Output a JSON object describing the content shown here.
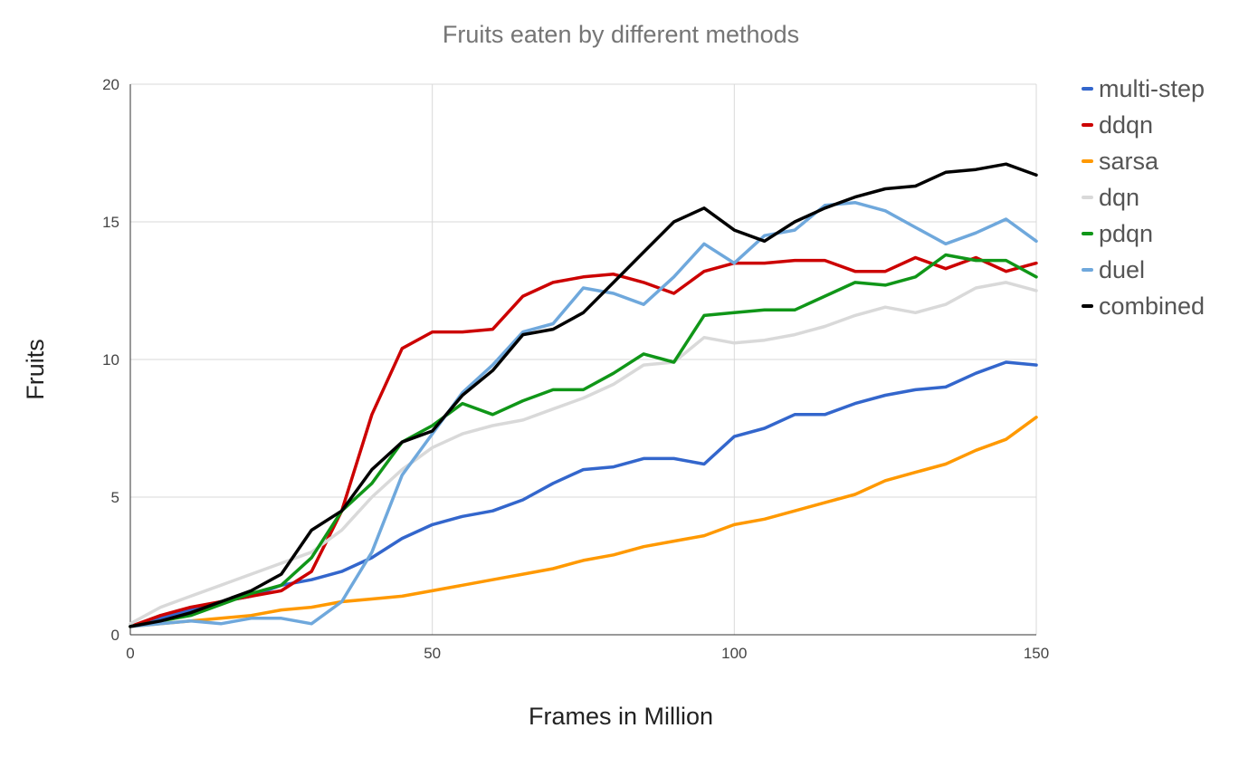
{
  "chart_data": {
    "type": "line",
    "title": "Fruits eaten by different methods",
    "xlabel": "Frames in Million",
    "ylabel": "Fruits",
    "xlim": [
      0,
      150
    ],
    "ylim": [
      0,
      20
    ],
    "xticks": [
      "0",
      "50",
      "100",
      "150"
    ],
    "yticks": [
      "0",
      "5",
      "10",
      "15",
      "20"
    ],
    "grid": true,
    "legend_position": "right",
    "x": [
      0,
      5,
      10,
      15,
      20,
      25,
      30,
      35,
      40,
      45,
      50,
      55,
      60,
      65,
      70,
      75,
      80,
      85,
      90,
      95,
      100,
      105,
      110,
      115,
      120,
      125,
      130,
      135,
      140,
      145,
      150
    ],
    "series": [
      {
        "name": "multi-step",
        "color": "#3366cc",
        "values": [
          0.3,
          0.6,
          0.9,
          1.2,
          1.4,
          1.8,
          2.0,
          2.3,
          2.8,
          3.5,
          4.0,
          4.3,
          4.5,
          4.9,
          5.5,
          6.0,
          6.1,
          6.4,
          6.4,
          6.2,
          7.2,
          7.5,
          8.0,
          8.0,
          8.4,
          8.7,
          8.9,
          9.0,
          9.5,
          9.9,
          9.8
        ]
      },
      {
        "name": "ddqn",
        "color": "#cc0000",
        "values": [
          0.3,
          0.7,
          1.0,
          1.2,
          1.4,
          1.6,
          2.3,
          4.5,
          8.0,
          10.4,
          11.0,
          11.0,
          11.1,
          12.3,
          12.8,
          13.0,
          13.1,
          12.8,
          12.4,
          13.2,
          13.5,
          13.5,
          13.6,
          13.6,
          13.2,
          13.2,
          13.7,
          13.3,
          13.7,
          13.2,
          13.5
        ]
      },
      {
        "name": "sarsa",
        "color": "#ff9900",
        "values": [
          0.3,
          0.4,
          0.5,
          0.6,
          0.7,
          0.9,
          1.0,
          1.2,
          1.3,
          1.4,
          1.6,
          1.8,
          2.0,
          2.2,
          2.4,
          2.7,
          2.9,
          3.2,
          3.4,
          3.6,
          4.0,
          4.2,
          4.5,
          4.8,
          5.1,
          5.6,
          5.9,
          6.2,
          6.7,
          7.1,
          7.9
        ]
      },
      {
        "name": "dqn",
        "color": "#d9d9d9",
        "values": [
          0.4,
          1.0,
          1.4,
          1.8,
          2.2,
          2.6,
          3.0,
          3.8,
          5.0,
          6.0,
          6.8,
          7.3,
          7.6,
          7.8,
          8.2,
          8.6,
          9.1,
          9.8,
          9.9,
          10.8,
          10.6,
          10.7,
          10.9,
          11.2,
          11.6,
          11.9,
          11.7,
          12.0,
          12.6,
          12.8,
          12.5
        ]
      },
      {
        "name": "pdqn",
        "color": "#109618",
        "values": [
          0.3,
          0.5,
          0.7,
          1.1,
          1.5,
          1.8,
          2.8,
          4.5,
          5.5,
          7.0,
          7.6,
          8.4,
          8.0,
          8.5,
          8.9,
          8.9,
          9.5,
          10.2,
          9.9,
          11.6,
          11.7,
          11.8,
          11.8,
          12.3,
          12.8,
          12.7,
          13.0,
          13.8,
          13.6,
          13.6,
          13.0
        ]
      },
      {
        "name": "duel",
        "color": "#6fa8dc",
        "values": [
          0.3,
          0.4,
          0.5,
          0.4,
          0.6,
          0.6,
          0.4,
          1.2,
          3.0,
          5.8,
          7.3,
          8.8,
          9.8,
          11.0,
          11.3,
          12.6,
          12.4,
          12.0,
          13.0,
          14.2,
          13.5,
          14.5,
          14.7,
          15.6,
          15.7,
          15.4,
          14.8,
          14.2,
          14.6,
          15.1,
          14.3
        ]
      },
      {
        "name": "combined",
        "color": "#000000",
        "values": [
          0.3,
          0.5,
          0.8,
          1.2,
          1.6,
          2.2,
          3.8,
          4.5,
          6.0,
          7.0,
          7.4,
          8.7,
          9.6,
          10.9,
          11.1,
          11.7,
          12.8,
          13.9,
          15.0,
          15.5,
          14.7,
          14.3,
          15.0,
          15.5,
          15.9,
          16.2,
          16.3,
          16.8,
          16.9,
          17.1,
          16.7
        ]
      }
    ]
  }
}
